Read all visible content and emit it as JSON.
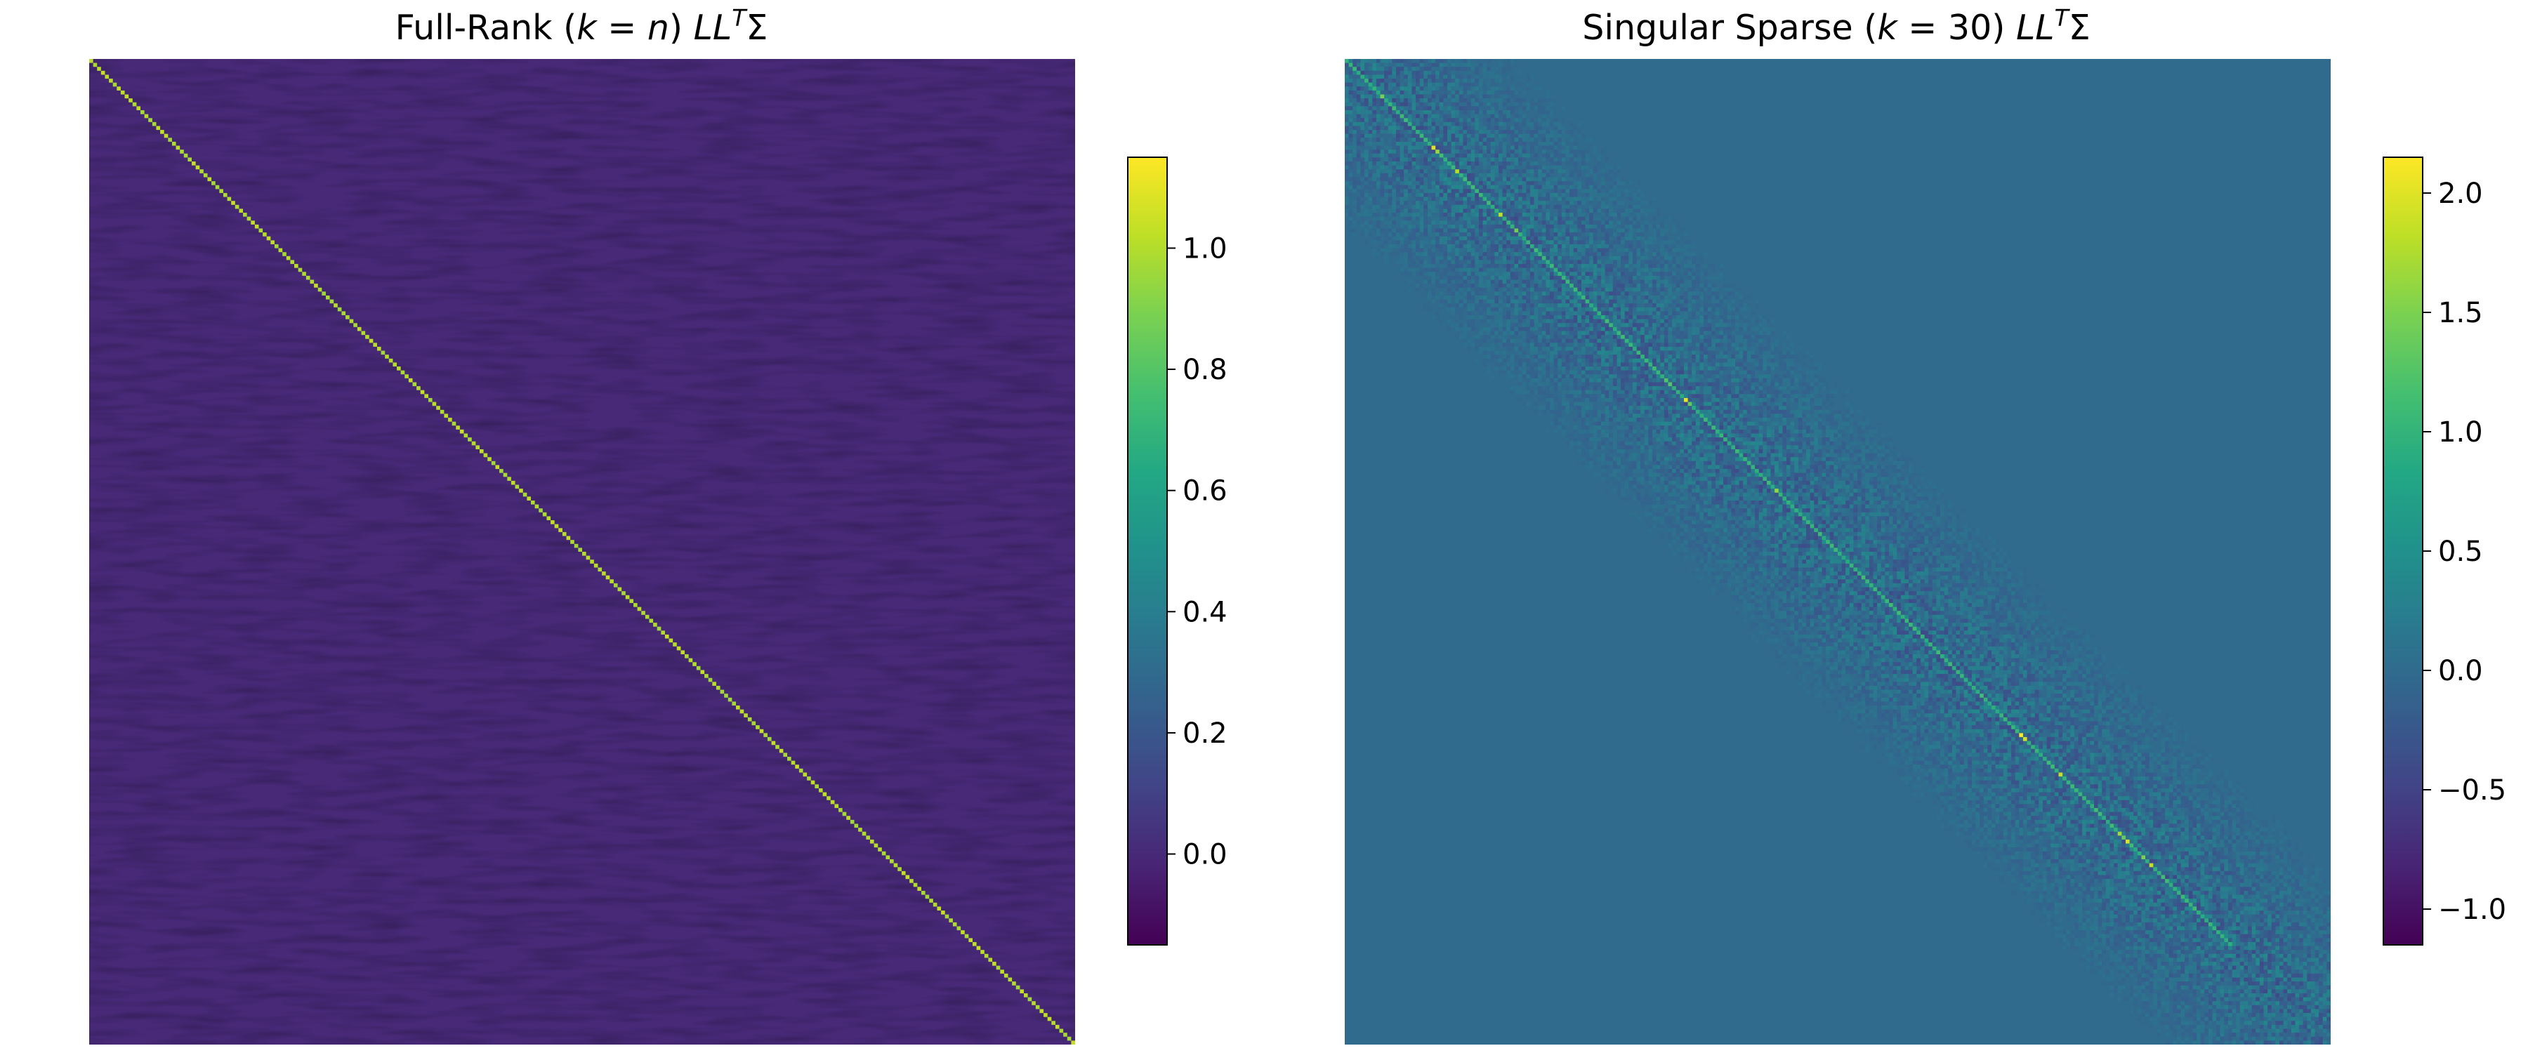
{
  "chart_data": [
    {
      "type": "heatmap",
      "title_parts": [
        "Full-Rank (",
        "k",
        " = ",
        "n",
        ") ",
        "LL",
        "T",
        "Σ"
      ],
      "matrix_size": 250,
      "structure": "identity-like: diagonal ≈ 1.0, off-diagonal ≈ 0.0 with small noise",
      "diagonal_value": 1.0,
      "off_diagonal_value": 0.0,
      "value_range": [
        -0.15,
        1.15
      ],
      "colormap": "viridis",
      "colorbar": {
        "ticks": [
          0.0,
          0.2,
          0.4,
          0.6,
          0.8,
          1.0
        ],
        "tick_labels": [
          "0.0",
          "0.2",
          "0.4",
          "0.6",
          "0.8",
          "1.0"
        ]
      },
      "axes_visible": false
    },
    {
      "type": "heatmap",
      "title_parts": [
        "Singular Sparse (",
        "k",
        " = 30) ",
        "LL",
        "T",
        "Σ"
      ],
      "matrix_size": 250,
      "structure": "banded: diagonal ≈ 1.0–2.1, noisy off-diagonal band, 0.0 elsewhere",
      "diagonal_value": 1.0,
      "diagonal_max": 2.15,
      "background_value": 0.0,
      "value_range": [
        -1.15,
        2.15
      ],
      "colormap": "viridis",
      "colorbar": {
        "ticks": [
          -1.0,
          -0.5,
          0.0,
          0.5,
          1.0,
          1.5,
          2.0
        ],
        "tick_labels": [
          "−1.0",
          "−0.5",
          "0.0",
          "0.5",
          "1.0",
          "1.5",
          "2.0"
        ]
      },
      "axes_visible": false
    }
  ]
}
